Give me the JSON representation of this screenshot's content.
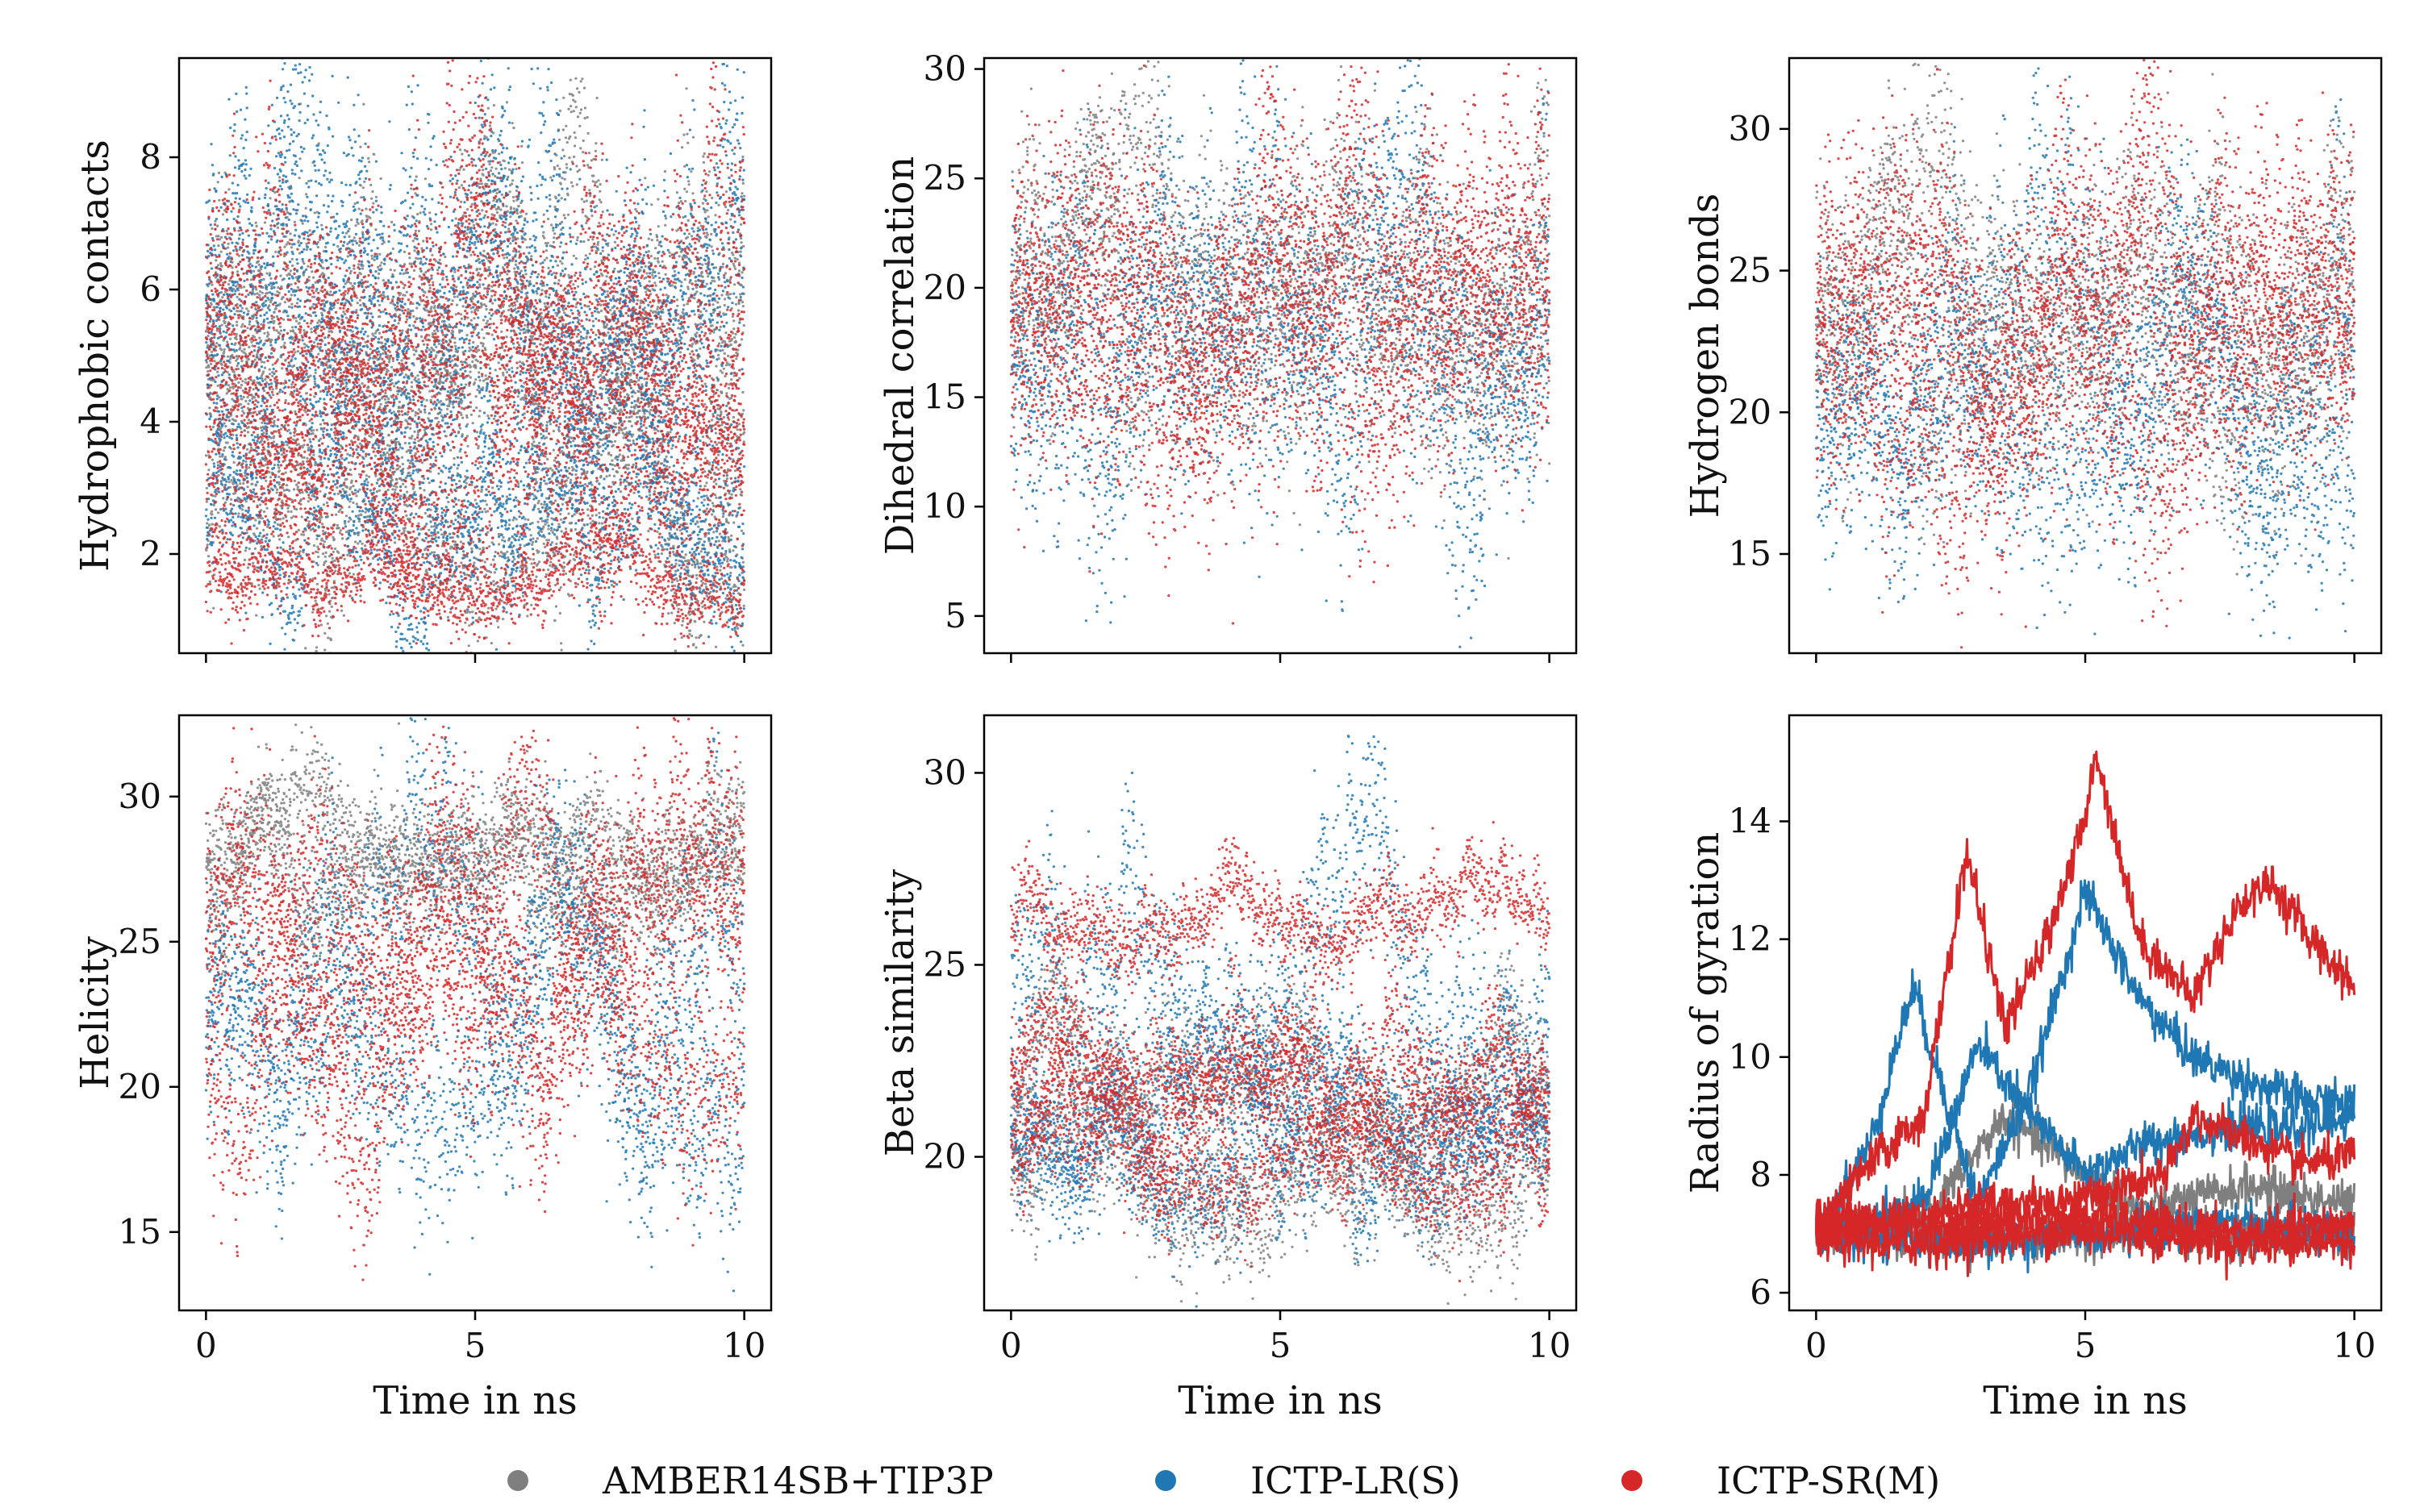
{
  "legend": [
    {
      "name": "AMBER14SB+TIP3P",
      "color": "#7f7f7f"
    },
    {
      "name": "ICTP-LR(S)",
      "color": "#1f77b4"
    },
    {
      "name": "ICTP-SR(M)",
      "color": "#d62728"
    }
  ],
  "chart_data": [
    {
      "type": "scatter",
      "id": "hydrophobic",
      "ylabel": "Hydrophobic contacts",
      "xlabel": "",
      "xlim": [
        -0.5,
        10.5
      ],
      "ylim": [
        0.5,
        9.5
      ],
      "xticks": [
        0,
        5,
        10
      ],
      "yticks": [
        2,
        4,
        6,
        8
      ],
      "show_xtick_labels": false,
      "series": [
        {
          "name": "AMBER14SB+TIP3P",
          "color": "#7f7f7f",
          "trajectories": [
            {
              "base": 5.2,
              "amp": 1.1,
              "jitter": 0.6
            },
            {
              "base": 3.8,
              "amp": 1.2,
              "jitter": 0.7
            },
            {
              "base": 2.6,
              "amp": 0.9,
              "jitter": 0.5
            },
            {
              "base": 5.8,
              "amp": 1.0,
              "jitter": 0.7
            }
          ]
        },
        {
          "name": "ICTP-LR(S)",
          "color": "#1f77b4",
          "trajectories": [
            {
              "base": 5.3,
              "amp": 1.2,
              "jitter": 0.8
            },
            {
              "base": 2.3,
              "amp": 0.8,
              "jitter": 0.4
            },
            {
              "base": 4.2,
              "amp": 1.3,
              "jitter": 0.8
            },
            {
              "base": 6.0,
              "amp": 1.1,
              "jitter": 0.9
            }
          ]
        },
        {
          "name": "ICTP-SR(M)",
          "color": "#d62728",
          "trajectories": [
            {
              "base": 5.0,
              "amp": 1.2,
              "jitter": 0.8
            },
            {
              "base": 1.6,
              "amp": 0.3,
              "jitter": 0.25
            },
            {
              "base": 3.2,
              "amp": 0.9,
              "jitter": 0.5
            },
            {
              "base": 5.6,
              "amp": 1.0,
              "jitter": 0.7
            },
            {
              "base": 4.4,
              "amp": 1.0,
              "jitter": 0.6
            }
          ]
        }
      ]
    },
    {
      "type": "scatter",
      "id": "dihedral",
      "ylabel": "Dihedral correlation",
      "xlabel": "",
      "xlim": [
        -0.5,
        10.5
      ],
      "ylim": [
        3.3,
        30.5
      ],
      "xticks": [
        0,
        5,
        10
      ],
      "yticks": [
        5,
        10,
        15,
        20,
        25,
        30
      ],
      "show_xtick_labels": false,
      "series": [
        {
          "name": "AMBER14SB+TIP3P",
          "color": "#7f7f7f",
          "trajectories": [
            {
              "base": 20.5,
              "amp": 3.0,
              "jitter": 2.5
            },
            {
              "base": 19.0,
              "amp": 2.5,
              "jitter": 2.5
            }
          ]
        },
        {
          "name": "ICTP-LR(S)",
          "color": "#1f77b4",
          "trajectories": [
            {
              "base": 16.5,
              "amp": 3.5,
              "jitter": 3.0
            },
            {
              "base": 19.0,
              "amp": 3.0,
              "jitter": 3.0
            }
          ]
        },
        {
          "name": "ICTP-SR(M)",
          "color": "#d62728",
          "trajectories": [
            {
              "base": 19.0,
              "amp": 3.0,
              "jitter": 3.0
            },
            {
              "base": 17.5,
              "amp": 3.0,
              "jitter": 3.0
            },
            {
              "base": 20.0,
              "amp": 2.5,
              "jitter": 2.5
            }
          ]
        }
      ]
    },
    {
      "type": "scatter",
      "id": "hbonds",
      "ylabel": "Hydrogen bonds",
      "xlabel": "",
      "xlim": [
        -0.5,
        10.5
      ],
      "ylim": [
        11.5,
        32.5
      ],
      "xticks": [
        0,
        5,
        10
      ],
      "yticks": [
        15,
        20,
        25,
        30
      ],
      "show_xtick_labels": false,
      "series": [
        {
          "name": "AMBER14SB+TIP3P",
          "color": "#7f7f7f",
          "trajectories": [
            {
              "base": 24.5,
              "amp": 2.0,
              "jitter": 2.0
            },
            {
              "base": 22.0,
              "amp": 2.0,
              "jitter": 2.0
            }
          ]
        },
        {
          "name": "ICTP-LR(S)",
          "color": "#1f77b4",
          "trajectories": [
            {
              "base": 22.0,
              "amp": 2.5,
              "jitter": 2.2
            },
            {
              "base": 19.5,
              "amp": 2.0,
              "jitter": 2.0
            }
          ]
        },
        {
          "name": "ICTP-SR(M)",
          "color": "#d62728",
          "trajectories": [
            {
              "base": 23.5,
              "amp": 2.5,
              "jitter": 2.2
            },
            {
              "base": 20.5,
              "amp": 2.5,
              "jitter": 2.0
            },
            {
              "base": 24.0,
              "amp": 2.0,
              "jitter": 2.0
            }
          ]
        }
      ]
    },
    {
      "type": "scatter",
      "id": "helicity",
      "ylabel": "Helicity",
      "xlabel": "Time in ns",
      "xlim": [
        -0.5,
        10.5
      ],
      "ylim": [
        12.3,
        32.8
      ],
      "xticks": [
        0,
        5,
        10
      ],
      "yticks": [
        15,
        20,
        25,
        30
      ],
      "show_xtick_labels": true,
      "series": [
        {
          "name": "AMBER14SB+TIP3P",
          "color": "#7f7f7f",
          "trajectories": [
            {
              "base": 28.5,
              "amp": 0.8,
              "jitter": 0.8
            },
            {
              "base": 27.0,
              "amp": 1.0,
              "jitter": 1.0
            }
          ]
        },
        {
          "name": "ICTP-LR(S)",
          "color": "#1f77b4",
          "trajectories": [
            {
              "base": 24.0,
              "amp": 2.5,
              "jitter": 1.8
            },
            {
              "base": 21.0,
              "amp": 2.5,
              "jitter": 1.5
            }
          ]
        },
        {
          "name": "ICTP-SR(M)",
          "color": "#d62728",
          "trajectories": [
            {
              "base": 26.5,
              "amp": 1.5,
              "jitter": 1.5
            },
            {
              "base": 24.0,
              "amp": 2.5,
              "jitter": 1.8
            },
            {
              "base": 22.0,
              "amp": 2.5,
              "jitter": 1.5
            }
          ]
        }
      ]
    },
    {
      "type": "scatter",
      "id": "beta",
      "ylabel": "Beta similarity",
      "xlabel": "Time in ns",
      "xlim": [
        -0.5,
        10.5
      ],
      "ylim": [
        16.0,
        31.5
      ],
      "xticks": [
        0,
        5,
        10
      ],
      "yticks": [
        20,
        25,
        30
      ],
      "show_xtick_labels": true,
      "series": [
        {
          "name": "AMBER14SB+TIP3P",
          "color": "#7f7f7f",
          "trajectories": [
            {
              "base": 19.5,
              "amp": 1.0,
              "jitter": 0.8
            },
            {
              "base": 21.5,
              "amp": 1.0,
              "jitter": 0.8
            }
          ]
        },
        {
          "name": "ICTP-LR(S)",
          "color": "#1f77b4",
          "trajectories": [
            {
              "base": 21.0,
              "amp": 1.0,
              "jitter": 0.8
            },
            {
              "base": 24.5,
              "amp": 2.0,
              "jitter": 1.2
            },
            {
              "base": 20.0,
              "amp": 1.0,
              "jitter": 0.7
            }
          ]
        },
        {
          "name": "ICTP-SR(M)",
          "color": "#d62728",
          "trajectories": [
            {
              "base": 26.2,
              "amp": 0.5,
              "jitter": 0.5
            },
            {
              "base": 22.0,
              "amp": 1.0,
              "jitter": 0.7
            },
            {
              "base": 20.0,
              "amp": 0.8,
              "jitter": 0.6
            },
            {
              "base": 21.5,
              "amp": 0.8,
              "jitter": 0.6
            }
          ]
        }
      ]
    },
    {
      "type": "line",
      "id": "rgyr",
      "ylabel": "Radius of gyration",
      "xlabel": "Time in ns",
      "xlim": [
        -0.5,
        10.5
      ],
      "ylim": [
        5.7,
        15.8
      ],
      "xticks": [
        0,
        5,
        10
      ],
      "yticks": [
        6,
        8,
        10,
        12,
        14
      ],
      "show_xtick_labels": true,
      "series": [
        {
          "name": "AMBER14SB+TIP3P",
          "color": "#7f7f7f",
          "paths": [
            {
              "t": [
                0,
                2,
                4,
                6,
                8,
                10
              ],
              "y": [
                7.0,
                7.0,
                6.9,
                7.0,
                7.0,
                7.0
              ]
            },
            {
              "t": [
                0,
                2,
                3.5,
                5,
                6,
                8,
                10
              ],
              "y": [
                7.0,
                7.2,
                9.0,
                8.0,
                7.4,
                7.8,
                7.5
              ]
            }
          ]
        },
        {
          "name": "ICTP-LR(S)",
          "color": "#1f77b4",
          "paths": [
            {
              "t": [
                0,
                1,
                1.8,
                2.5,
                3,
                4,
                5,
                6,
                7,
                8,
                9,
                10
              ],
              "y": [
                7.0,
                8.5,
                11.2,
                9.0,
                7.5,
                9.5,
                12.8,
                11.0,
                10.0,
                9.6,
                9.3,
                9.2
              ]
            },
            {
              "t": [
                0,
                2,
                3,
                4,
                5,
                6,
                7,
                8,
                9,
                10
              ],
              "y": [
                7.0,
                7.5,
                10.2,
                9.0,
                8.0,
                8.5,
                8.7,
                8.8,
                8.8,
                9.0
              ]
            },
            {
              "t": [
                0,
                3,
                5,
                7,
                10
              ],
              "y": [
                7.0,
                6.8,
                7.0,
                7.2,
                7.0
              ]
            }
          ]
        },
        {
          "name": "ICTP-SR(M)",
          "color": "#d62728",
          "paths": [
            {
              "t": [
                0,
                1,
                2,
                2.8,
                3.5,
                4.2,
                5,
                5.2,
                6,
                7,
                7.8,
                8.4,
                9.2,
                10
              ],
              "y": [
                7.0,
                8.2,
                9.0,
                13.5,
                10.5,
                11.8,
                14.0,
                15.2,
                12.0,
                11.0,
                12.5,
                13.0,
                12.0,
                11.2
              ]
            },
            {
              "t": [
                0,
                3,
                5,
                6.5,
                7,
                8,
                9,
                10
              ],
              "y": [
                7.0,
                7.5,
                7.6,
                8.0,
                9.0,
                8.6,
                8.2,
                8.3
              ]
            },
            {
              "t": [
                0,
                2,
                4,
                6,
                8,
                10
              ],
              "y": [
                6.9,
                6.8,
                7.0,
                7.0,
                6.8,
                6.9
              ]
            },
            {
              "t": [
                0,
                2,
                4,
                6,
                8,
                10
              ],
              "y": [
                7.3,
                7.1,
                7.3,
                7.2,
                7.0,
                7.2
              ]
            }
          ]
        }
      ]
    }
  ]
}
